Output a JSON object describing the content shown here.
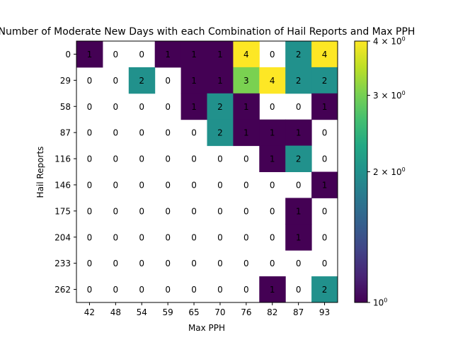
{
  "chart_data": {
    "type": "heatmap",
    "title": "Number of Moderate New Days with each Combination of Hail Reports and Max PPH",
    "xlabel": "Max PPH",
    "ylabel": "Hail Reports",
    "x_categories": [
      "42",
      "48",
      "54",
      "59",
      "65",
      "70",
      "76",
      "82",
      "87",
      "93"
    ],
    "y_categories": [
      "0",
      "29",
      "58",
      "87",
      "116",
      "146",
      "175",
      "204",
      "233",
      "262"
    ],
    "values": [
      [
        1,
        0,
        0,
        1,
        1,
        1,
        4,
        0,
        2,
        4
      ],
      [
        0,
        0,
        2,
        0,
        1,
        1,
        3,
        4,
        2,
        2
      ],
      [
        0,
        0,
        0,
        0,
        1,
        2,
        1,
        0,
        0,
        1
      ],
      [
        0,
        0,
        0,
        0,
        0,
        2,
        1,
        1,
        1,
        0
      ],
      [
        0,
        0,
        0,
        0,
        0,
        0,
        0,
        1,
        2,
        0
      ],
      [
        0,
        0,
        0,
        0,
        0,
        0,
        0,
        0,
        0,
        1
      ],
      [
        0,
        0,
        0,
        0,
        0,
        0,
        0,
        0,
        1,
        0
      ],
      [
        0,
        0,
        0,
        0,
        0,
        0,
        0,
        0,
        1,
        0
      ],
      [
        0,
        0,
        0,
        0,
        0,
        0,
        0,
        0,
        0,
        0
      ],
      [
        0,
        0,
        0,
        0,
        0,
        0,
        0,
        1,
        0,
        2
      ]
    ],
    "colormap": "viridis",
    "color_scale": "log",
    "zero_cells": "blank",
    "colorbar": {
      "range": [
        1,
        4
      ],
      "ticks": [
        {
          "value": 1,
          "base": "10",
          "exp": "0"
        },
        {
          "value": 2,
          "base": "2 × 10",
          "exp": "0"
        },
        {
          "value": 3,
          "base": "3 × 10",
          "exp": "0"
        },
        {
          "value": 4,
          "base": "4 × 10",
          "exp": "0"
        }
      ]
    },
    "colors": {
      "1": "#440154",
      "2": "#21918c",
      "3": "#7ad151",
      "4": "#fde725"
    }
  }
}
